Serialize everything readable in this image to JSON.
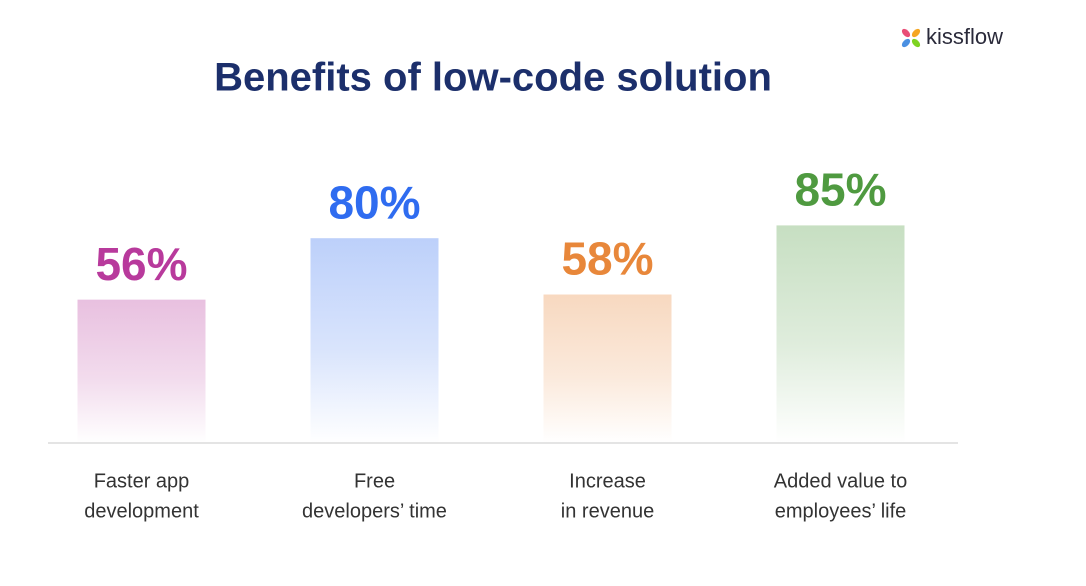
{
  "chart_data": {
    "type": "bar",
    "title": "Benefits of low-code solution",
    "brand": "kissflow",
    "categories": [
      [
        "Faster app",
        "development"
      ],
      [
        "Free",
        "developers’ time"
      ],
      [
        "Increase",
        "in revenue"
      ],
      [
        "Added value to",
        "employees’ life"
      ]
    ],
    "values": [
      56,
      80,
      58,
      85
    ],
    "value_labels": [
      "56%",
      "80%",
      "58%",
      "85%"
    ],
    "colors": [
      "#b83a9c",
      "#2f6cf0",
      "#e8873a",
      "#4f9a40"
    ],
    "ylim": [
      0,
      100
    ]
  }
}
